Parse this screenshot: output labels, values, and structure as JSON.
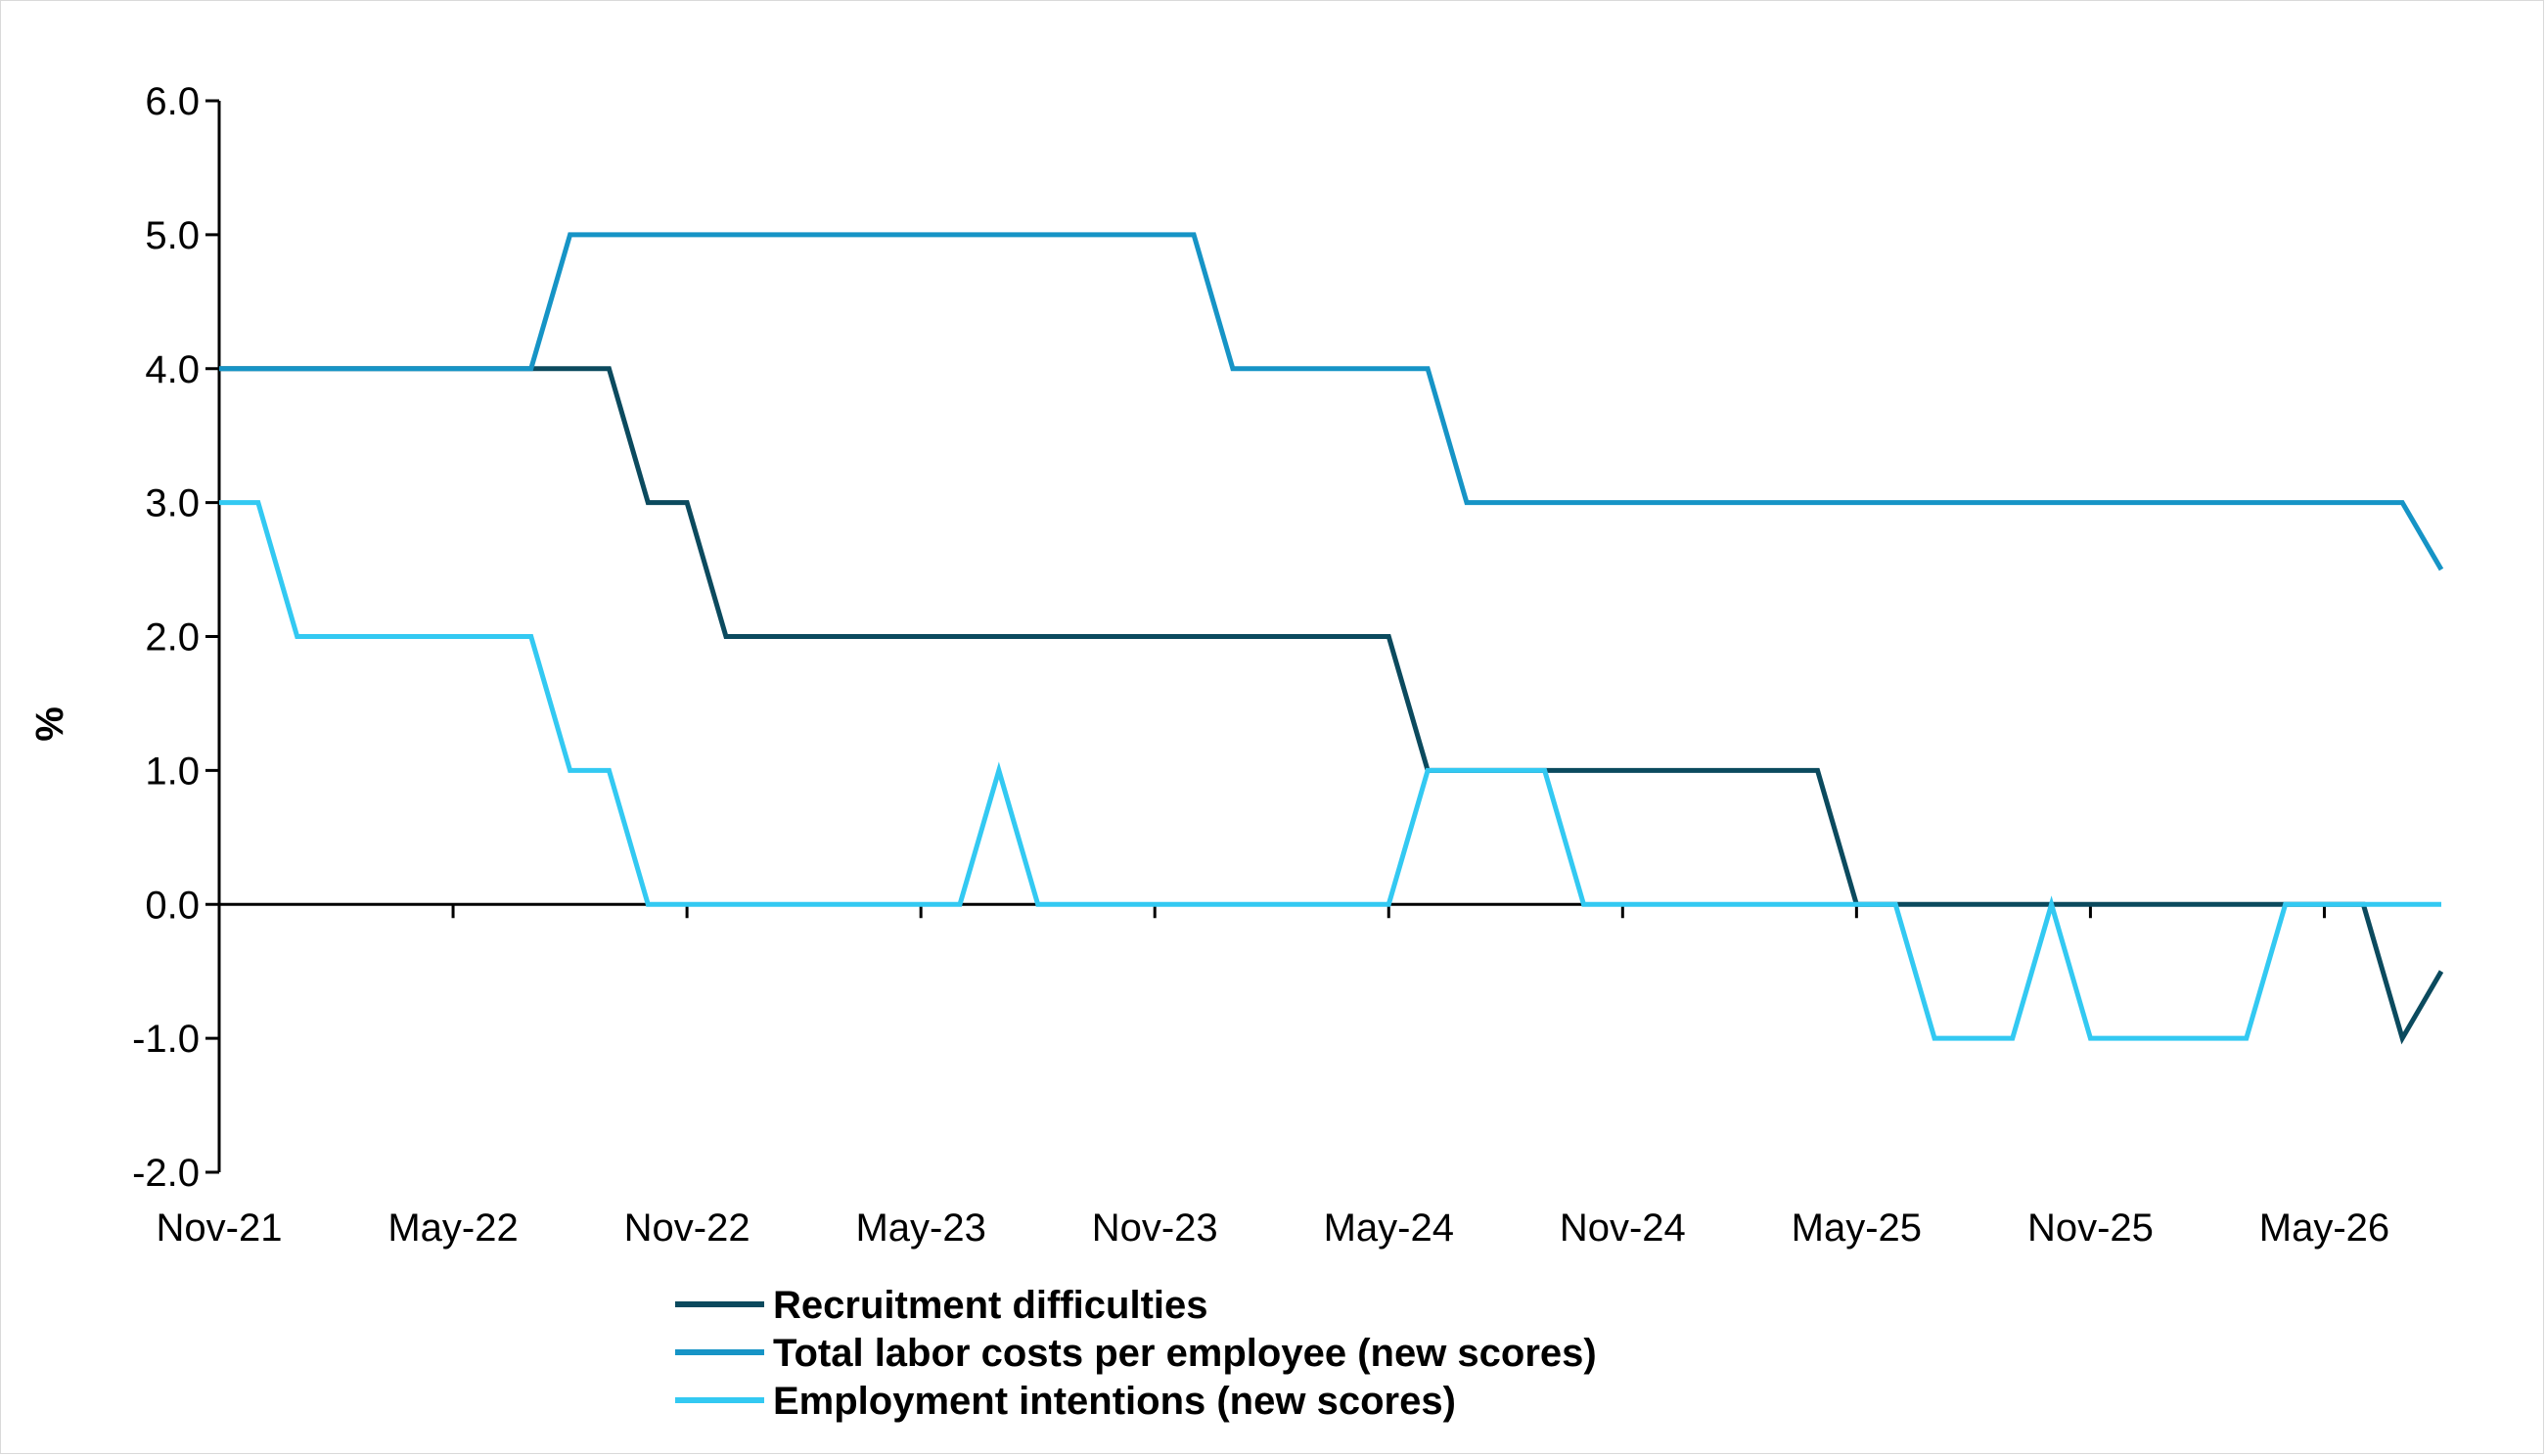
{
  "chart_data": {
    "type": "line",
    "title": "",
    "xlabel": "",
    "ylabel": "%",
    "ylim": [
      -2.0,
      6.0
    ],
    "y_ticks": [
      "6.0",
      "5.0",
      "4.0",
      "3.0",
      "2.0",
      "1.0",
      "0.0",
      "-1.0",
      "-2.0"
    ],
    "x_tick_labels": [
      "Nov-21",
      "May-22",
      "Nov-22",
      "May-23",
      "Nov-23",
      "May-24",
      "Nov-24",
      "May-25",
      "Nov-25",
      "May-26"
    ],
    "x": [
      "Nov-21",
      "Dec-21",
      "Jan-22",
      "Feb-22",
      "Mar-22",
      "Apr-22",
      "May-22",
      "Jun-22",
      "Jul-22",
      "Aug-22",
      "Sep-22",
      "Oct-22",
      "Nov-22",
      "Dec-22",
      "Jan-23",
      "Feb-23",
      "Mar-23",
      "Apr-23",
      "May-23",
      "Jun-23",
      "Jul-23",
      "Aug-23",
      "Sep-23",
      "Oct-23",
      "Nov-23",
      "Dec-23",
      "Jan-24",
      "Feb-24",
      "Mar-24",
      "Apr-24",
      "May-24",
      "Jun-24",
      "Jul-24",
      "Aug-24",
      "Sep-24",
      "Oct-24",
      "Nov-24",
      "Dec-24",
      "Jan-25",
      "Feb-25",
      "Mar-25",
      "Apr-25",
      "May-25",
      "Jun-25",
      "Jul-25",
      "Aug-25",
      "Sep-25",
      "Oct-25",
      "Nov-25",
      "Dec-25",
      "Jan-26",
      "Feb-26",
      "Mar-26",
      "Apr-26",
      "May-26",
      "Jun-26",
      "Jul-26",
      "Aug-26"
    ],
    "series": [
      {
        "name": "Recruitment difficulties",
        "color": "#0b4a5e",
        "values": [
          4,
          4,
          4,
          4,
          4,
          4,
          4,
          4,
          4,
          4,
          4,
          3,
          3,
          2,
          2,
          2,
          2,
          2,
          2,
          2,
          2,
          2,
          2,
          2,
          2,
          2,
          2,
          2,
          2,
          2,
          2,
          1,
          1,
          1,
          1,
          1,
          1,
          1,
          1,
          1,
          1,
          1,
          0,
          0,
          0,
          0,
          0,
          0,
          0,
          0,
          0,
          0,
          0,
          0,
          0,
          0,
          -1,
          -0.5
        ]
      },
      {
        "name": "Total labor costs per employee (new scores)",
        "color": "#1694c6",
        "values": [
          4,
          4,
          4,
          4,
          4,
          4,
          4,
          4,
          4,
          5,
          5,
          5,
          5,
          5,
          5,
          5,
          5,
          5,
          5,
          5,
          5,
          5,
          5,
          5,
          5,
          5,
          4,
          4,
          4,
          4,
          4,
          4,
          3,
          3,
          3,
          3,
          3,
          3,
          3,
          3,
          3,
          3,
          3,
          3,
          3,
          3,
          3,
          3,
          3,
          3,
          3,
          3,
          3,
          3,
          3,
          3,
          3,
          2.5
        ]
      },
      {
        "name": "Employment intentions (new scores)",
        "color": "#33c9f2",
        "values": [
          3,
          3,
          2,
          2,
          2,
          2,
          2,
          2,
          2,
          1,
          1,
          0,
          0,
          0,
          0,
          0,
          0,
          0,
          0,
          0,
          1,
          0,
          0,
          0,
          0,
          0,
          0,
          0,
          0,
          0,
          0,
          1,
          1,
          1,
          1,
          0,
          0,
          0,
          0,
          0,
          0,
          0,
          0,
          0,
          -1,
          -1,
          -1,
          0,
          -1,
          -1,
          -1,
          -1,
          -1,
          0,
          0,
          0,
          0,
          0
        ]
      }
    ],
    "grid": false,
    "legend_position": "bottom"
  }
}
